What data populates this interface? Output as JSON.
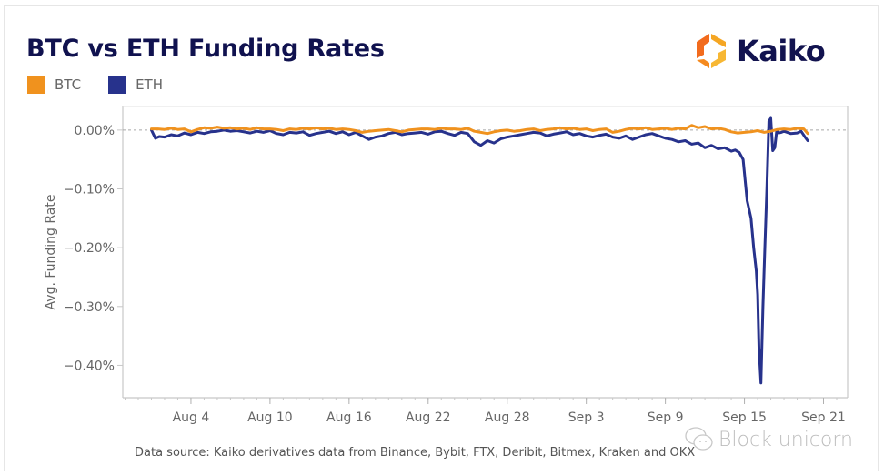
{
  "header": {
    "title": "BTC vs ETH Funding Rates",
    "brand": "Kaiko"
  },
  "legend": [
    {
      "label": "BTC",
      "color": "#f0921e"
    },
    {
      "label": "ETH",
      "color": "#27328c"
    }
  ],
  "footer": {
    "source": "Data source: Kaiko derivatives data from Binance, Bybit, FTX, Deribit, Bitmex, Kraken and OKX"
  },
  "watermark": {
    "text": "Block unicorn"
  },
  "chart_data": {
    "type": "line",
    "title": "BTC vs ETH Funding Rates",
    "xlabel": "",
    "ylabel": "Avg. Funding Rate",
    "x_unit": "days since Jul 29",
    "xlim": [
      0,
      55
    ],
    "ylim": [
      -0.455,
      0.04
    ],
    "y_ticks": [
      0.0,
      -0.1,
      -0.2,
      -0.3,
      -0.4
    ],
    "y_tick_labels": [
      "0.00%",
      "-0.10%",
      "-0.20%",
      "-0.30%",
      "-0.40%"
    ],
    "x_ticks": [
      6,
      12,
      18,
      24,
      30,
      36,
      42,
      48,
      54
    ],
    "x_tick_labels": [
      "Aug 4",
      "Aug 10",
      "Aug 16",
      "Aug 22",
      "Aug 28",
      "Sep 3",
      "Sep 9",
      "Sep 15",
      "Sep 21"
    ],
    "reference_line": 0.0,
    "grid": false,
    "legend_position": "top-left",
    "series": [
      {
        "name": "BTC",
        "color": "#f0921e",
        "x": [
          3,
          3.5,
          4,
          4.5,
          5,
          5.5,
          6,
          6.5,
          7,
          7.5,
          8,
          8.5,
          9,
          9.5,
          10,
          10.5,
          11,
          11.5,
          12,
          12.5,
          13,
          13.5,
          14,
          14.5,
          15,
          15.5,
          16,
          16.5,
          17,
          17.5,
          18,
          18.5,
          19,
          19.5,
          20,
          20.5,
          21,
          21.5,
          22,
          22.5,
          23,
          23.5,
          24,
          24.5,
          25,
          25.5,
          26,
          26.5,
          27,
          27.5,
          28,
          28.5,
          29,
          29.5,
          30,
          30.5,
          31,
          31.5,
          32,
          32.5,
          33,
          33.5,
          34,
          34.5,
          35,
          35.5,
          36,
          36.5,
          37,
          37.5,
          38,
          38.5,
          39,
          39.5,
          40,
          40.5,
          41,
          41.5,
          42,
          42.5,
          43,
          43.5,
          44,
          44.5,
          45,
          45.5,
          46,
          46.5,
          47,
          47.5,
          48,
          48.5,
          49,
          49.5,
          50,
          50.5,
          51,
          51.5,
          52,
          52.5,
          52.8
        ],
        "values": [
          0.002,
          0.002,
          0.001,
          0.003,
          0.001,
          0.002,
          -0.003,
          0.001,
          0.004,
          0.003,
          0.005,
          0.003,
          0.004,
          0.002,
          0.003,
          0.001,
          0.004,
          0.002,
          0.002,
          0.001,
          -0.001,
          0.002,
          0.001,
          0.003,
          0.002,
          0.004,
          0.002,
          0.003,
          0.001,
          0.002,
          0.001,
          -0.001,
          -0.004,
          -0.002,
          -0.001,
          0.0,
          0.001,
          -0.001,
          -0.003,
          0.0,
          0.001,
          0.002,
          0.002,
          0.001,
          0.003,
          0.002,
          0.002,
          0.001,
          0.003,
          -0.002,
          -0.004,
          -0.006,
          -0.003,
          -0.001,
          0.0,
          -0.002,
          -0.001,
          0.001,
          0.002,
          -0.001,
          0.001,
          0.002,
          0.004,
          0.002,
          0.003,
          0.001,
          0.002,
          -0.001,
          0.001,
          0.002,
          -0.004,
          -0.002,
          0.001,
          0.003,
          0.002,
          0.004,
          0.001,
          0.002,
          0.003,
          0.001,
          0.003,
          0.002,
          0.008,
          0.004,
          0.006,
          0.002,
          0.003,
          0.001,
          -0.003,
          -0.005,
          -0.004,
          -0.003,
          -0.001,
          -0.004,
          -0.002,
          0.001,
          0.002,
          0.001,
          0.003,
          0.002,
          -0.006
        ]
      },
      {
        "name": "ETH",
        "color": "#27328c",
        "x": [
          3,
          3.3,
          3.6,
          4,
          4.5,
          5,
          5.5,
          6,
          6.5,
          7,
          7.5,
          8,
          8.5,
          9,
          9.5,
          10,
          10.5,
          11,
          11.5,
          12,
          12.5,
          13,
          13.5,
          14,
          14.5,
          15,
          15.5,
          16,
          16.5,
          17,
          17.5,
          18,
          18.5,
          19,
          19.5,
          20,
          20.5,
          21,
          21.5,
          22,
          22.5,
          23,
          23.5,
          24,
          24.5,
          25,
          25.5,
          26,
          26.5,
          27,
          27.5,
          28,
          28.5,
          29,
          29.5,
          30,
          30.5,
          31,
          31.5,
          32,
          32.5,
          33,
          33.5,
          34,
          34.5,
          35,
          35.5,
          36,
          36.5,
          37,
          37.5,
          38,
          38.5,
          39,
          39.5,
          40,
          40.5,
          41,
          41.5,
          42,
          42.5,
          43,
          43.5,
          44,
          44.5,
          45,
          45.5,
          46,
          46.5,
          47,
          47.3,
          47.6,
          47.9,
          48.2,
          48.5,
          48.7,
          48.9,
          49.0,
          49.1,
          49.25,
          49.4,
          49.55,
          49.7,
          49.85,
          50.0,
          50.15,
          50.3,
          50.45,
          50.6,
          50.8,
          51,
          51.5,
          52,
          52.3,
          52.6,
          52.8
        ],
        "values": [
          0.0,
          -0.014,
          -0.011,
          -0.012,
          -0.008,
          -0.01,
          -0.005,
          -0.008,
          -0.004,
          -0.006,
          -0.003,
          -0.002,
          0.0,
          -0.002,
          -0.001,
          -0.003,
          -0.005,
          -0.002,
          -0.004,
          -0.001,
          -0.006,
          -0.008,
          -0.004,
          -0.005,
          -0.003,
          -0.009,
          -0.006,
          -0.004,
          -0.002,
          -0.006,
          -0.003,
          -0.008,
          -0.004,
          -0.01,
          -0.016,
          -0.012,
          -0.01,
          -0.006,
          -0.004,
          -0.008,
          -0.006,
          -0.005,
          -0.004,
          -0.007,
          -0.003,
          -0.002,
          -0.006,
          -0.009,
          -0.004,
          -0.006,
          -0.02,
          -0.026,
          -0.018,
          -0.022,
          -0.015,
          -0.012,
          -0.01,
          -0.008,
          -0.006,
          -0.004,
          -0.005,
          -0.01,
          -0.007,
          -0.005,
          -0.003,
          -0.008,
          -0.006,
          -0.01,
          -0.012,
          -0.009,
          -0.007,
          -0.012,
          -0.014,
          -0.01,
          -0.016,
          -0.012,
          -0.008,
          -0.006,
          -0.01,
          -0.014,
          -0.016,
          -0.02,
          -0.018,
          -0.024,
          -0.022,
          -0.03,
          -0.026,
          -0.032,
          -0.03,
          -0.036,
          -0.034,
          -0.038,
          -0.05,
          -0.12,
          -0.15,
          -0.2,
          -0.24,
          -0.28,
          -0.37,
          -0.43,
          -0.3,
          -0.2,
          -0.1,
          0.015,
          0.02,
          -0.035,
          -0.03,
          0.0,
          -0.005,
          -0.004,
          -0.002,
          -0.006,
          -0.005,
          -0.002,
          -0.012,
          -0.018
        ]
      }
    ]
  }
}
